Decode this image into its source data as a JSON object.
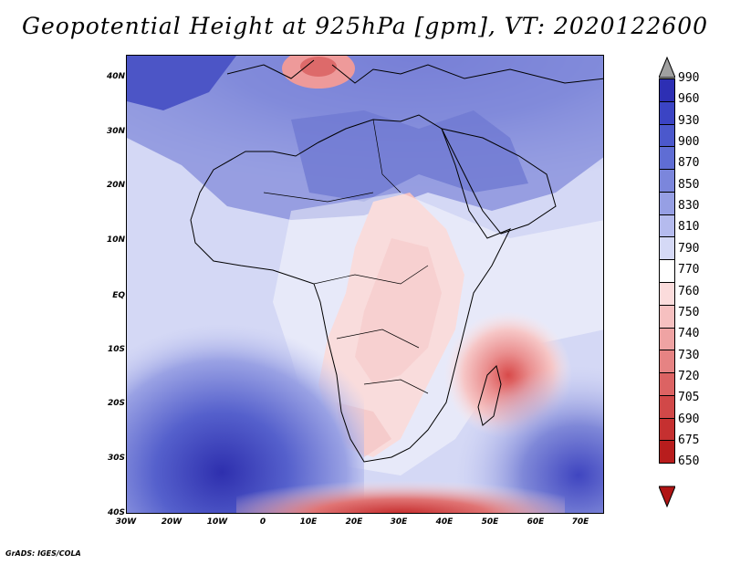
{
  "title": "Geopotential Height at 925hPa [gpm], VT: 2020122600",
  "credit": "GrADS: IGES/COLA",
  "map": {
    "lat_labels": [
      "40N",
      "30N",
      "20N",
      "10N",
      "EQ",
      "10S",
      "20S",
      "30S",
      "40S"
    ],
    "lon_labels": [
      "30W",
      "20W",
      "10W",
      "0",
      "10E",
      "20E",
      "30E",
      "40E",
      "50E",
      "60E",
      "70E"
    ]
  },
  "colorbar": {
    "levels": [
      "990",
      "960",
      "930",
      "900",
      "870",
      "850",
      "830",
      "810",
      "790",
      "770",
      "760",
      "750",
      "740",
      "730",
      "720",
      "705",
      "690",
      "675",
      "650"
    ],
    "colors": [
      "#231f98",
      "#2d2fb4",
      "#3b44c4",
      "#4b58cc",
      "#5f6dd4",
      "#7b86dc",
      "#969fe4",
      "#b5bbee",
      "#d5d9f6",
      "#ffffff",
      "#fbdcdc",
      "#f6c0c0",
      "#efa3a3",
      "#e68383",
      "#dc6363",
      "#d14848",
      "#c53030",
      "#b81d1d",
      "#9e1010"
    ],
    "top_arrow_color": "#a0a0a0",
    "bottom_arrow_color": "#b01414"
  }
}
